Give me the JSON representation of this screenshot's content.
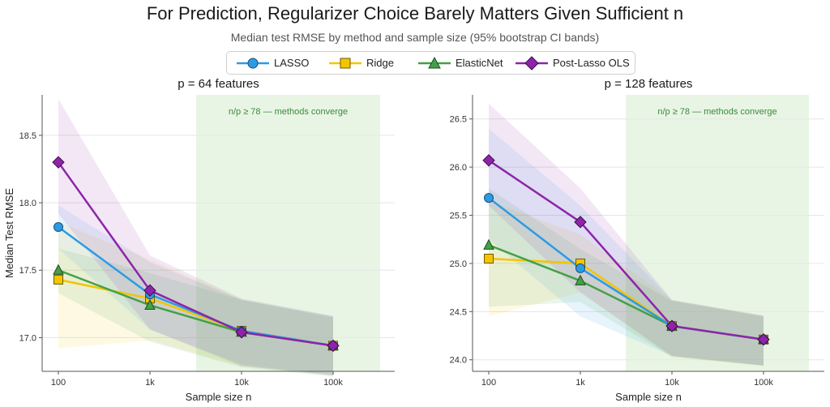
{
  "title": "For Prediction, Regularizer Choice Barely Matters Given Sufficient n",
  "subtitle": "Median test RMSE by method and sample size  (95% bootstrap CI bands)",
  "colors": {
    "LASSO": "#2b9be6",
    "Ridge": "#f4c400",
    "ElasticNet": "#43a047",
    "Post-Lasso OLS": "#8e24aa",
    "zone": "#e8f5e4",
    "zone_text": "#3c8a3c"
  },
  "legend": [
    {
      "name": "LASSO",
      "marker": "circle"
    },
    {
      "name": "Ridge",
      "marker": "square"
    },
    {
      "name": "ElasticNet",
      "marker": "triangle"
    },
    {
      "name": "Post-Lasso OLS",
      "marker": "diamond"
    }
  ],
  "chart_data": [
    {
      "type": "line",
      "title": "p = 64 features",
      "xlabel": "Sample size  n",
      "ylabel": "Median Test RMSE",
      "x_scale": "log",
      "x": [
        100,
        1000,
        10000,
        100000
      ],
      "x_tick_labels": [
        "100",
        "1k",
        "10k",
        "100k"
      ],
      "ylim": [
        16.75,
        18.8
      ],
      "y_ticks": [
        17.0,
        17.5,
        18.0,
        18.5
      ],
      "y_tick_labels": [
        "17.0",
        "17.5",
        "18.0",
        "18.5"
      ],
      "grid": true,
      "shaded_region": {
        "from_n": 3000,
        "to_n": 200000,
        "label": "n/p ≥ 78 — methods converge"
      },
      "series": [
        {
          "name": "LASSO",
          "values": [
            17.82,
            17.32,
            17.05,
            16.94
          ],
          "ci_low": [
            17.66,
            17.06,
            16.8,
            16.72
          ],
          "ci_high": [
            17.98,
            17.56,
            17.28,
            17.16
          ]
        },
        {
          "name": "Ridge",
          "values": [
            17.43,
            17.29,
            17.05,
            16.94
          ],
          "ci_low": [
            16.92,
            16.98,
            16.79,
            16.72
          ],
          "ci_high": [
            17.86,
            17.58,
            17.28,
            17.15
          ]
        },
        {
          "name": "ElasticNet",
          "values": [
            17.5,
            17.24,
            17.04,
            16.94
          ],
          "ci_low": [
            17.33,
            16.97,
            16.78,
            16.71
          ],
          "ci_high": [
            17.66,
            17.48,
            17.28,
            17.15
          ]
        },
        {
          "name": "Post-Lasso OLS",
          "values": [
            18.3,
            17.35,
            17.04,
            16.94
          ],
          "ci_low": [
            17.92,
            17.06,
            16.79,
            16.72
          ],
          "ci_high": [
            18.77,
            17.61,
            17.29,
            17.16
          ]
        }
      ]
    },
    {
      "type": "line",
      "title": "p = 128 features",
      "xlabel": "Sample size  n",
      "ylabel": "",
      "x_scale": "log",
      "x": [
        100,
        1000,
        10000,
        100000
      ],
      "x_tick_labels": [
        "100",
        "1k",
        "10k",
        "100k"
      ],
      "ylim": [
        23.88,
        26.75
      ],
      "y_ticks": [
        24.0,
        24.5,
        25.0,
        25.5,
        26.0,
        26.5
      ],
      "y_tick_labels": [
        "24.0",
        "24.5",
        "25.0",
        "25.5",
        "26.0",
        "26.5"
      ],
      "grid": true,
      "shaded_region": {
        "from_n": 3000,
        "to_n": 200000,
        "label": "n/p ≥ 78 — methods converge"
      },
      "series": [
        {
          "name": "LASSO",
          "values": [
            25.68,
            24.95,
            24.35,
            24.21
          ],
          "ci_low": [
            25.25,
            24.45,
            24.04,
            23.94
          ],
          "ci_high": [
            26.4,
            25.6,
            24.62,
            24.45
          ]
        },
        {
          "name": "Ridge",
          "values": [
            25.05,
            25.0,
            24.35,
            24.21
          ],
          "ci_low": [
            24.45,
            24.7,
            24.03,
            23.93
          ],
          "ci_high": [
            25.65,
            25.3,
            24.62,
            24.46
          ]
        },
        {
          "name": "ElasticNet",
          "values": [
            25.19,
            24.82,
            24.35,
            24.21
          ],
          "ci_low": [
            24.55,
            24.6,
            24.03,
            23.94
          ],
          "ci_high": [
            25.78,
            25.15,
            24.61,
            24.45
          ]
        },
        {
          "name": "Post-Lasso OLS",
          "values": [
            26.07,
            25.43,
            24.35,
            24.21
          ],
          "ci_low": [
            25.6,
            24.7,
            24.04,
            23.94
          ],
          "ci_high": [
            26.66,
            25.78,
            24.62,
            24.46
          ]
        }
      ]
    }
  ]
}
